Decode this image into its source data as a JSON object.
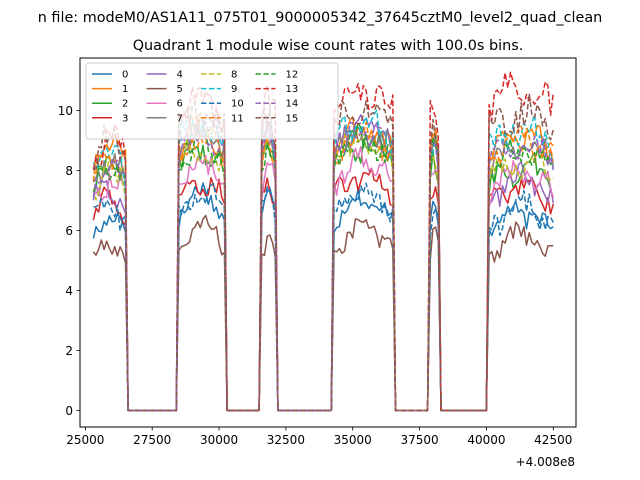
{
  "chart_data": {
    "type": "line",
    "suptitle": "n file: modeM0/AS1A11_075T01_9000005342_37645cztM0_level2_quad_clean",
    "title": "Quadrant 1 module wise count rates with 100.0s bins.",
    "xlabel": "",
    "ylabel": "",
    "x_offset_label": "+4.008e8",
    "xlim": [
      24800,
      43350
    ],
    "ylim": [
      -0.55,
      11.75
    ],
    "x_ticks": [
      25000,
      27500,
      30000,
      32500,
      35000,
      37500,
      40000,
      42500
    ],
    "y_ticks": [
      0,
      2,
      4,
      6,
      8,
      10
    ],
    "x_tick_labels": [
      "25000",
      "27500",
      "30000",
      "32500",
      "35000",
      "37500",
      "40000",
      "42500"
    ],
    "y_tick_labels": [
      "0",
      "2",
      "4",
      "6",
      "8",
      "10"
    ],
    "grid": false,
    "legend_position": "top-left",
    "legend_columns": 4,
    "segments": [
      [
        25300,
        26500
      ],
      [
        28500,
        30200
      ],
      [
        31600,
        32100
      ],
      [
        34300,
        36500
      ],
      [
        37900,
        38200
      ],
      [
        40100,
        42500
      ]
    ],
    "series": [
      {
        "name": "0",
        "color": "#1f77b4",
        "dashed": false,
        "levels": [
          5.9,
          6.6,
          6.6,
          6.4,
          6.3,
          6.0
        ],
        "amp": 0.3
      },
      {
        "name": "1",
        "color": "#ff7f0e",
        "dashed": false,
        "levels": [
          8.3,
          8.7,
          8.6,
          8.8,
          8.5,
          8.6
        ],
        "amp": 0.4
      },
      {
        "name": "2",
        "color": "#2ca02c",
        "dashed": false,
        "levels": [
          7.6,
          8.1,
          8.0,
          8.3,
          7.9,
          7.5
        ],
        "amp": 0.4
      },
      {
        "name": "3",
        "color": "#d62728",
        "dashed": false,
        "levels": [
          6.4,
          7.0,
          7.0,
          7.2,
          7.0,
          6.9
        ],
        "amp": 0.3
      },
      {
        "name": "4",
        "color": "#9467bd",
        "dashed": false,
        "levels": [
          6.8,
          8.9,
          8.9,
          8.8,
          8.5,
          7.1
        ],
        "amp": 0.4
      },
      {
        "name": "5",
        "color": "#8c564b",
        "dashed": false,
        "levels": [
          5.0,
          5.5,
          5.3,
          5.5,
          5.2,
          5.2
        ],
        "amp": 0.3
      },
      {
        "name": "6",
        "color": "#e377c2",
        "dashed": false,
        "levels": [
          7.1,
          7.6,
          7.5,
          7.7,
          7.4,
          7.3
        ],
        "amp": 0.4
      },
      {
        "name": "7",
        "color": "#7f7f7f",
        "dashed": false,
        "levels": [
          7.6,
          8.6,
          8.5,
          8.6,
          8.3,
          8.2
        ],
        "amp": 0.4
      },
      {
        "name": "8",
        "color": "#bcbd22",
        "dashed": true,
        "levels": [
          7.4,
          8.1,
          8.0,
          8.3,
          7.9,
          7.7
        ],
        "amp": 0.4
      },
      {
        "name": "9",
        "color": "#17becf",
        "dashed": true,
        "levels": [
          8.0,
          8.9,
          8.8,
          9.0,
          8.7,
          8.8
        ],
        "amp": 0.5
      },
      {
        "name": "10",
        "color": "#1f77b4",
        "dashed": true,
        "levels": [
          6.3,
          6.6,
          6.7,
          6.6,
          6.3,
          6.1
        ],
        "amp": 0.4
      },
      {
        "name": "11",
        "color": "#ff7f0e",
        "dashed": true,
        "levels": [
          7.8,
          8.5,
          8.4,
          8.6,
          8.3,
          8.4
        ],
        "amp": 0.4
      },
      {
        "name": "12",
        "color": "#2ca02c",
        "dashed": true,
        "levels": [
          7.5,
          8.3,
          8.1,
          8.4,
          8.0,
          8.0
        ],
        "amp": 0.4
      },
      {
        "name": "13",
        "color": "#d62728",
        "dashed": true,
        "levels": [
          8.5,
          9.8,
          9.7,
          10.0,
          9.6,
          10.1
        ],
        "amp": 0.5
      },
      {
        "name": "14",
        "color": "#9467bd",
        "dashed": true,
        "levels": [
          7.6,
          8.6,
          8.5,
          8.7,
          8.4,
          8.3
        ],
        "amp": 0.4
      },
      {
        "name": "15",
        "color": "#8c564b",
        "dashed": true,
        "levels": [
          8.4,
          9.3,
          9.2,
          9.5,
          9.1,
          9.3
        ],
        "amp": 0.5
      }
    ]
  }
}
